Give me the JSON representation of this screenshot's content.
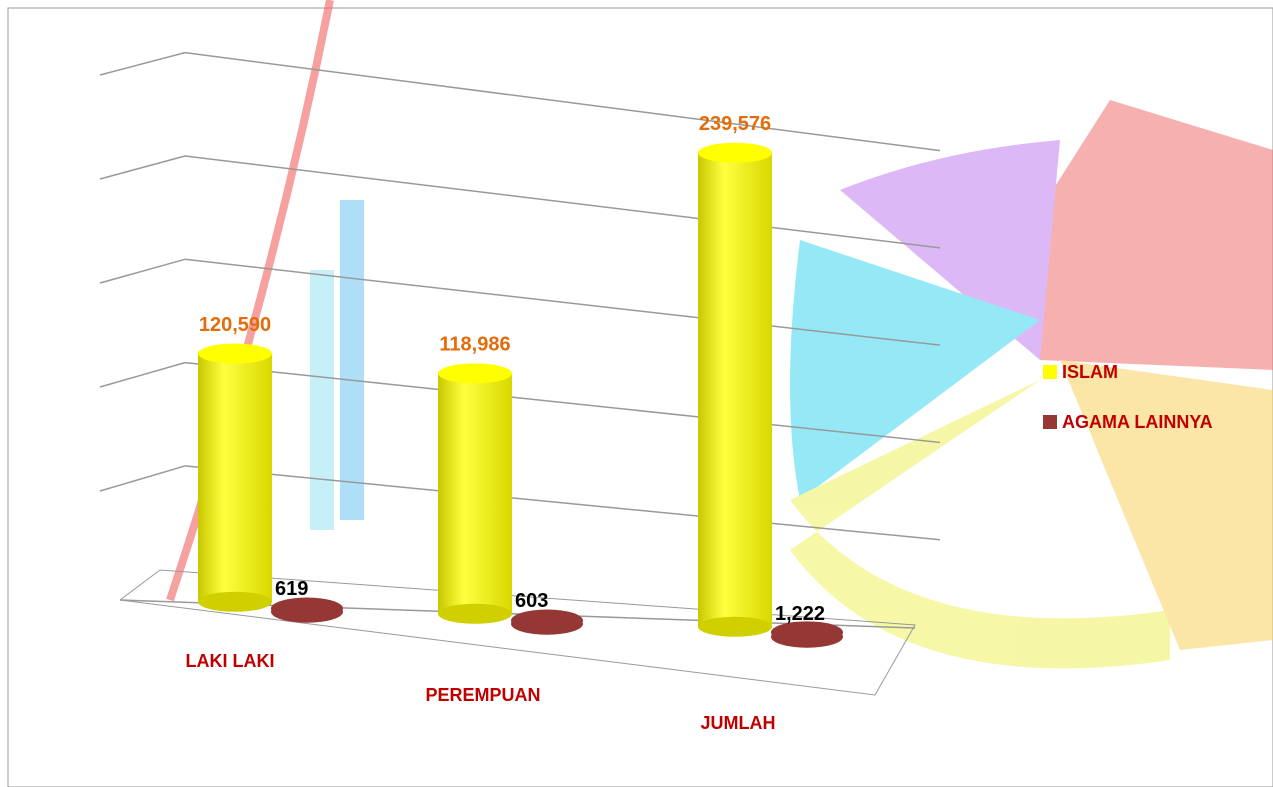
{
  "chart_data": {
    "type": "bar",
    "categories": [
      "LAKI LAKI",
      "PEREMPUAN",
      "JUMLAH"
    ],
    "series": [
      {
        "name": "ISLAM",
        "color": "#ffff00",
        "values": [
          120590,
          118986,
          239576
        ],
        "value_labels": [
          "120,590",
          "118,986",
          "239,576"
        ]
      },
      {
        "name": "AGAMA LAINNYA",
        "color": "#953735",
        "values": [
          619,
          603,
          1222
        ],
        "value_labels": [
          "619",
          "603",
          "1,222"
        ]
      }
    ],
    "ylim": [
      0,
      250000
    ],
    "yticks": [
      0,
      50000,
      100000,
      150000,
      200000,
      250000
    ],
    "grid": true,
    "legend": "right"
  }
}
